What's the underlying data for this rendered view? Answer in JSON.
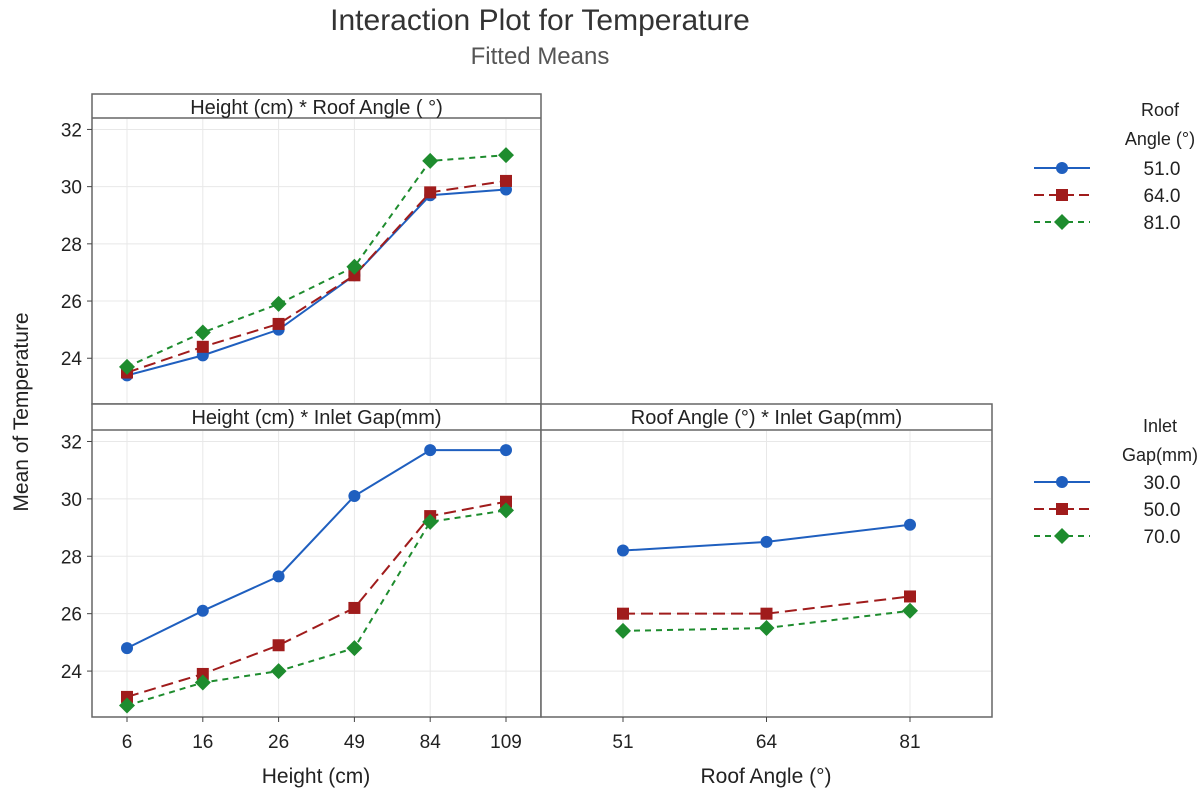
{
  "chart_data": {
    "type": "line",
    "title": "Interaction Plot for Temperature",
    "subtitle": "Fitted Means",
    "ylabel": "Mean of Temperature",
    "y_ticks": [
      "24",
      "26",
      "28",
      "30",
      "32"
    ],
    "ylim": [
      22.4,
      32.4
    ],
    "grid": true,
    "colors": {
      "series1": "#1f5fbf",
      "series2": "#a01c1c",
      "series3": "#1e8c2e",
      "frame": "#666666",
      "grid": "#e8e8e8"
    },
    "panels": [
      {
        "title": "Height (cm) * Roof Angle ( °)",
        "x_categories": [
          "6",
          "16",
          "26",
          "49",
          "84",
          "109"
        ],
        "show_x_axis": false,
        "legend": "Roof Angle (°)",
        "series": [
          {
            "name": "51.0",
            "values": [
              23.4,
              24.1,
              25.0,
              26.9,
              29.7,
              29.9
            ]
          },
          {
            "name": "64.0",
            "values": [
              23.5,
              24.4,
              25.2,
              26.9,
              29.8,
              30.2
            ]
          },
          {
            "name": "81.0",
            "values": [
              23.7,
              24.9,
              25.9,
              27.2,
              30.9,
              31.1
            ]
          }
        ]
      },
      {
        "title": "Height (cm) * Inlet Gap(mm)",
        "x_categories": [
          "6",
          "16",
          "26",
          "49",
          "84",
          "109"
        ],
        "show_x_axis": true,
        "legend": "Inlet Gap(mm)",
        "series": [
          {
            "name": "30.0",
            "values": [
              24.8,
              26.1,
              27.3,
              30.1,
              31.7,
              31.7
            ]
          },
          {
            "name": "50.0",
            "values": [
              23.1,
              23.9,
              24.9,
              26.2,
              29.4,
              29.9
            ]
          },
          {
            "name": "70.0",
            "values": [
              22.8,
              23.6,
              24.0,
              24.8,
              29.2,
              29.6
            ]
          }
        ]
      },
      {
        "title": "Roof Angle (°) * Inlet Gap(mm)",
        "x_categories": [
          "51",
          "64",
          "81"
        ],
        "show_x_axis": true,
        "legend": "Inlet Gap(mm)",
        "series": [
          {
            "name": "30.0",
            "values": [
              28.2,
              28.5,
              29.1
            ]
          },
          {
            "name": "50.0",
            "values": [
              26.0,
              26.0,
              26.6
            ]
          },
          {
            "name": "70.0",
            "values": [
              25.4,
              25.5,
              26.1
            ]
          }
        ]
      }
    ],
    "xlabels": [
      "Height (cm)",
      "Roof Angle (°)"
    ],
    "legends": [
      {
        "title_lines": [
          "Roof",
          "Angle (°)"
        ],
        "entries": [
          "51.0",
          "64.0",
          "81.0"
        ]
      },
      {
        "title_lines": [
          "Inlet",
          "Gap(mm)"
        ],
        "entries": [
          "30.0",
          "50.0",
          "70.0"
        ]
      }
    ]
  }
}
